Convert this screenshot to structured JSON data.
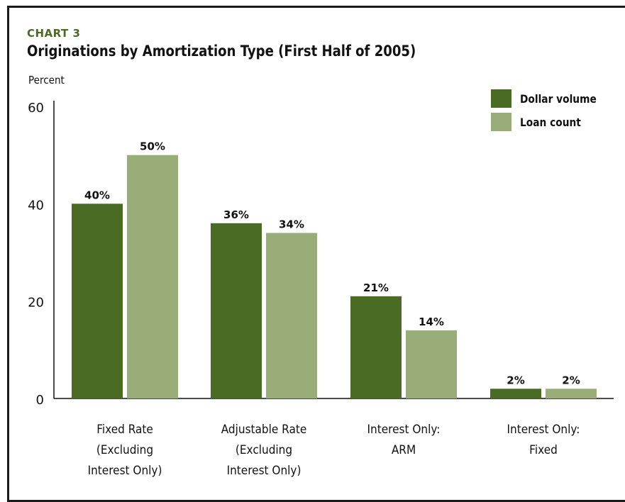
{
  "chart_data": {
    "type": "bar",
    "label": "CHART 3",
    "title": "Originations by Amortization Type (First Half of 2005)",
    "ylabel": "Percent",
    "ylim": [
      0,
      60
    ],
    "yticks": [
      "0",
      "20",
      "40",
      "60"
    ],
    "categories": [
      [
        "Fixed Rate",
        "(Excluding",
        "Interest Only)"
      ],
      [
        "Adjustable Rate",
        "(Excluding",
        "Interest Only)"
      ],
      [
        "Interest Only:",
        "ARM"
      ],
      [
        "Interest Only:",
        "Fixed"
      ]
    ],
    "series": [
      {
        "name": "Dollar volume",
        "color": "#4a6b23",
        "values": [
          40,
          36,
          21,
          2
        ],
        "labels": [
          "40%",
          "36%",
          "21%",
          "2%"
        ]
      },
      {
        "name": "Loan count",
        "color": "#98ad78",
        "values": [
          50,
          34,
          14,
          2
        ],
        "labels": [
          "50%",
          "34%",
          "14%",
          "2%"
        ]
      }
    ],
    "grid": false,
    "legend_position": "top-right"
  }
}
